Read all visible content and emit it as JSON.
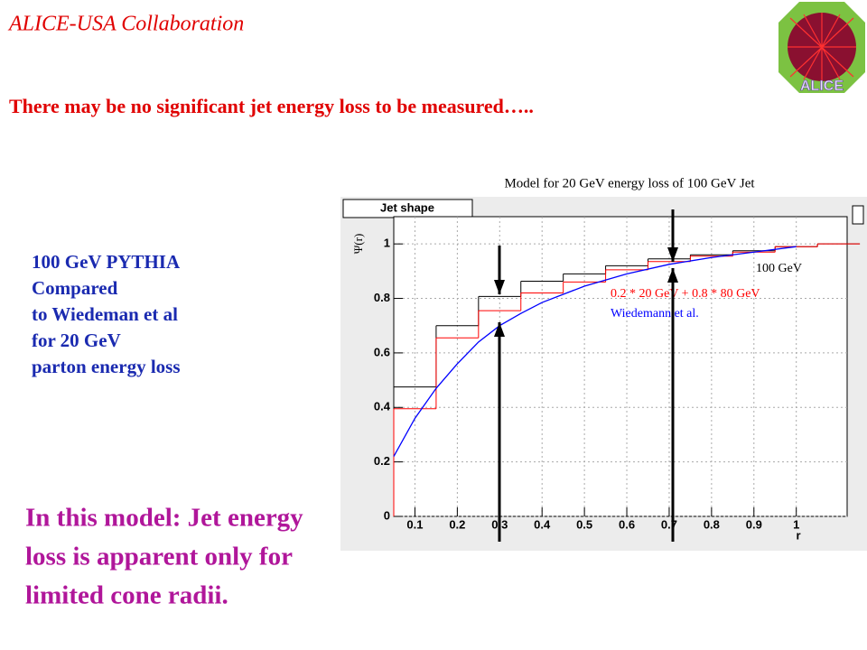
{
  "header": "ALICE-USA Collaboration",
  "logo_text": "ALICE",
  "headline": "There may be no significant jet energy loss to be measured…..",
  "side_note": [
    "100 GeV PYTHIA",
    "Compared",
    "to Wiedeman et al",
    "for 20 GeV",
    "parton energy loss"
  ],
  "conclusion": [
    "In this model: Jet energy",
    "loss is apparent only for",
    "limited cone radii."
  ],
  "chart_data": {
    "type": "histogram",
    "title": "Model for 20 GeV energy loss of 100 GeV Jet",
    "legend_title": "Jet shape",
    "x_label": "r",
    "y_label": "Ψ(r)",
    "bins": [
      0.05,
      0.15,
      0.25,
      0.35,
      0.45,
      0.55,
      0.65,
      0.75,
      0.85,
      0.95,
      1.05,
      1.15
    ],
    "series": [
      {
        "name": "100 GeV",
        "color": "#000000",
        "values": [
          0.475,
          0.7,
          0.807,
          0.863,
          0.89,
          0.92,
          0.945,
          0.96,
          0.975,
          0.99,
          1.0
        ]
      },
      {
        "name": "0.2 * 20 GeV + 0.8 *  80 GeV",
        "color": "#ff0000",
        "values": [
          0.395,
          0.655,
          0.755,
          0.82,
          0.86,
          0.905,
          0.935,
          0.955,
          0.97,
          0.99,
          1.0
        ]
      },
      {
        "name": "Wiedemann et al.",
        "color": "#0000ff",
        "x": [
          0.05,
          0.1,
          0.15,
          0.2,
          0.25,
          0.3,
          0.35,
          0.4,
          0.5,
          0.6,
          0.7,
          0.8,
          0.9,
          1.0
        ],
        "values": [
          0.22,
          0.36,
          0.47,
          0.56,
          0.64,
          0.7,
          0.745,
          0.785,
          0.845,
          0.89,
          0.925,
          0.95,
          0.97,
          0.99
        ]
      }
    ],
    "xlim": [
      0.05,
      1.12
    ],
    "ylim": [
      0,
      1.1
    ],
    "xticks": [
      0.1,
      0.2,
      0.3,
      0.4,
      0.5,
      0.6,
      0.7,
      0.8,
      0.9,
      1
    ],
    "yticks": [
      0,
      0.2,
      0.4,
      0.6,
      0.8,
      1
    ],
    "grid": true
  }
}
